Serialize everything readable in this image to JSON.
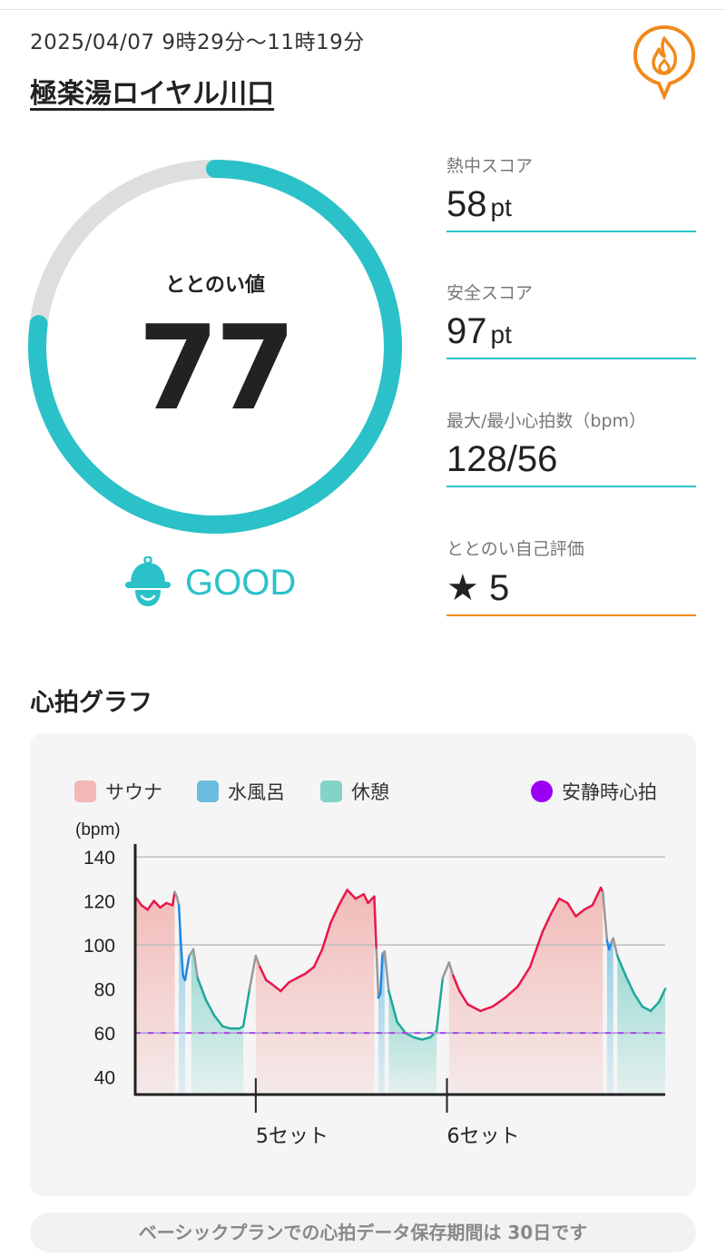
{
  "header": {
    "date_range": "2025/04/07 9時29分〜11時19分",
    "facility_name": "極楽湯ロイヤル川口",
    "pin_icon": "fire-pin-icon"
  },
  "totonoi": {
    "label": "ととのい値",
    "value": "77",
    "gauge_fraction": 0.77,
    "status": "GOOD",
    "status_icon": "smiling-sauna-hat-icon",
    "accent_color": "#2bc1c8"
  },
  "stats": [
    {
      "label": "熱中スコア",
      "value": "58",
      "unit": "pt"
    },
    {
      "label": "安全スコア",
      "value": "97",
      "unit": "pt"
    },
    {
      "label": "最大/最小心拍数（bpm）",
      "value": "128/56",
      "unit": ""
    },
    {
      "label": "ととのい自己評価",
      "value": "★ 5",
      "unit": ""
    }
  ],
  "graph_section": {
    "title": "心拍グラフ"
  },
  "legend": {
    "sauna": "サウナ",
    "cold_bath": "水風呂",
    "rest": "休憩",
    "resting_hr": "安静時心拍"
  },
  "chart_data": {
    "type": "line",
    "ylabel": "(bpm)",
    "ylim": [
      32,
      145
    ],
    "yticks": [
      40,
      60,
      80,
      100,
      120,
      140
    ],
    "x_markers": [
      "5セット",
      "6セット"
    ],
    "resting_heart_rate": 60,
    "colors": {
      "sauna": "#f2b8b5",
      "cold_bath": "#6bbcdf",
      "rest": "#84d3c9",
      "resting_hr": "#a020f0"
    },
    "phases": [
      {
        "type": "sauna",
        "start": 0,
        "end": 19
      },
      {
        "type": "cold_bath",
        "start": 21,
        "end": 24
      },
      {
        "type": "rest",
        "start": 27,
        "end": 52
      },
      {
        "type": "sauna",
        "start": 58,
        "end": 115
      },
      {
        "type": "cold_bath",
        "start": 117,
        "end": 120
      },
      {
        "type": "rest",
        "start": 122,
        "end": 145
      },
      {
        "type": "sauna",
        "start": 151,
        "end": 225
      },
      {
        "type": "cold_bath",
        "start": 227,
        "end": 230
      },
      {
        "type": "rest",
        "start": 232,
        "end": 255
      }
    ],
    "series": [
      {
        "x": [
          0,
          3,
          6,
          9,
          12,
          15,
          18,
          19,
          20,
          21,
          22,
          23,
          24,
          26,
          28,
          30,
          34,
          38,
          42,
          46,
          50,
          52,
          55,
          58,
          60,
          63,
          66,
          70,
          74,
          78,
          82,
          86,
          90,
          94,
          98,
          102,
          106,
          110,
          112,
          115,
          116,
          117,
          118,
          119,
          120,
          122,
          126,
          130,
          134,
          138,
          142,
          145,
          148,
          151,
          153,
          156,
          160,
          166,
          172,
          178,
          184,
          190,
          196,
          200,
          204,
          208,
          212,
          216,
          220,
          224,
          225,
          227,
          228,
          229,
          230,
          232,
          236,
          240,
          244,
          248,
          252,
          255
        ],
        "y": [
          122,
          118,
          116,
          120,
          117,
          119,
          118,
          124,
          122,
          118,
          100,
          86,
          84,
          95,
          98,
          85,
          75,
          68,
          63,
          62,
          62,
          63,
          80,
          95,
          90,
          84,
          82,
          79,
          83,
          85,
          87,
          90,
          98,
          110,
          118,
          125,
          121,
          123,
          119,
          122,
          98,
          76,
          78,
          96,
          97,
          79,
          65,
          60,
          58,
          57,
          58,
          61,
          85,
          92,
          86,
          79,
          73,
          70,
          72,
          76,
          81,
          90,
          106,
          114,
          121,
          119,
          113,
          116,
          118,
          126,
          124,
          102,
          98,
          101,
          103,
          95,
          86,
          78,
          72,
          70,
          74,
          80
        ],
        "colors": [
          "#e8164c",
          "#e8164c",
          "#e8164c",
          "#e8164c",
          "#e8164c",
          "#e8164c",
          "#e8164c",
          "#999999",
          "#999999",
          "#2287e0",
          "#2287e0",
          "#2287e0",
          "#2287e0",
          "#999999",
          "#999999",
          "#1fa79e",
          "#1fa79e",
          "#1fa79e",
          "#1fa79e",
          "#1fa79e",
          "#1fa79e",
          "#1fa79e",
          "#999999",
          "#999999",
          "#e8164c",
          "#e8164c",
          "#e8164c",
          "#e8164c",
          "#e8164c",
          "#e8164c",
          "#e8164c",
          "#e8164c",
          "#e8164c",
          "#e8164c",
          "#e8164c",
          "#e8164c",
          "#e8164c",
          "#e8164c",
          "#e8164c",
          "#e8164c",
          "#999999",
          "#2287e0",
          "#2287e0",
          "#999999",
          "#999999",
          "#1fa79e",
          "#1fa79e",
          "#1fa79e",
          "#1fa79e",
          "#1fa79e",
          "#1fa79e",
          "#1fa79e",
          "#999999",
          "#999999",
          "#e8164c",
          "#e8164c",
          "#e8164c",
          "#e8164c",
          "#e8164c",
          "#e8164c",
          "#e8164c",
          "#e8164c",
          "#e8164c",
          "#e8164c",
          "#e8164c",
          "#e8164c",
          "#e8164c",
          "#e8164c",
          "#e8164c",
          "#e8164c",
          "#999999",
          "#2287e0",
          "#2287e0",
          "#999999",
          "#999999",
          "#1fa79e",
          "#1fa79e",
          "#1fa79e",
          "#1fa79e",
          "#1fa79e",
          "#1fa79e",
          "#1fa79e"
        ]
      }
    ]
  },
  "notice": "ベーシックプランでの心拍データ保存期間は 30日です"
}
